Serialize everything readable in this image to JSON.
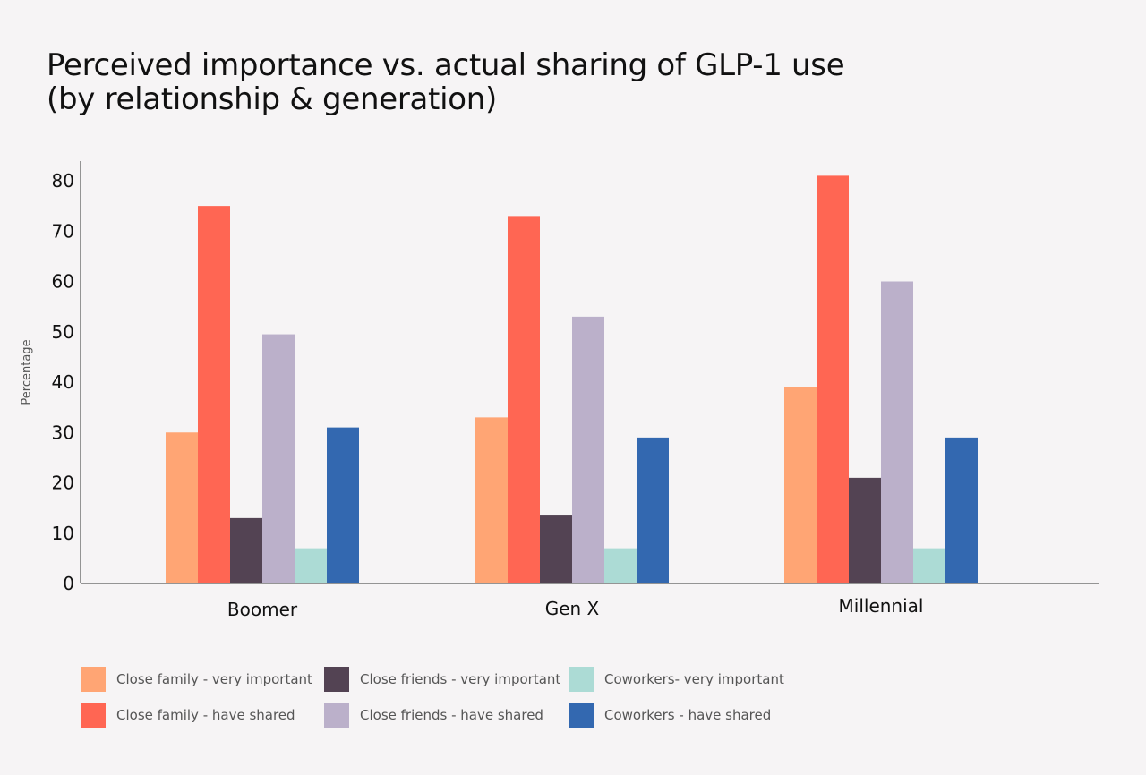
{
  "chart_data": {
    "type": "bar",
    "title": "Perceived importance vs. actual sharing of GLP-1 use (by relationship & generation)",
    "title_lines": [
      "Perceived importance vs. actual sharing of GLP-1 use",
      "(by relationship & generation)"
    ],
    "ylabel": "Percentage",
    "xlabel": "",
    "ylim": [
      0,
      80
    ],
    "yticks": [
      0,
      10,
      20,
      30,
      40,
      50,
      60,
      70,
      80
    ],
    "grid": false,
    "legend_position": "bottom",
    "categories": [
      "Boomer",
      "Gen X",
      "Millennial"
    ],
    "series": [
      {
        "name": "Close family - very important",
        "color": "#ffa574",
        "values": [
          30,
          33,
          39
        ]
      },
      {
        "name": "Close family - have shared",
        "color": "#ff6653",
        "values": [
          75,
          73,
          81
        ]
      },
      {
        "name": "Close friends - very important",
        "color": "#534353",
        "values": [
          13,
          13.5,
          21
        ]
      },
      {
        "name": "Close friends - have shared",
        "color": "#bbb0ca",
        "values": [
          49.5,
          53,
          60
        ]
      },
      {
        "name": "Coworkers- very important",
        "color": "#acdbd5",
        "values": [
          7,
          7,
          7
        ]
      },
      {
        "name": "Coworkers - have shared",
        "color": "#3368b0",
        "values": [
          31,
          29,
          29
        ]
      }
    ]
  }
}
